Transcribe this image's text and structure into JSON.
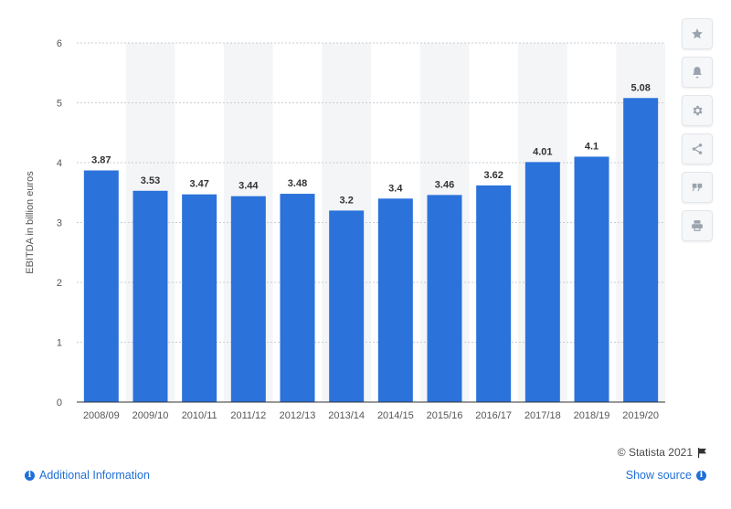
{
  "chart_data": {
    "type": "bar",
    "categories": [
      "2008/09",
      "2009/10",
      "2010/11",
      "2011/12",
      "2012/13",
      "2013/14",
      "2014/15",
      "2015/16",
      "2016/17",
      "2017/18",
      "2018/19",
      "2019/20"
    ],
    "values": [
      3.87,
      3.53,
      3.47,
      3.44,
      3.48,
      3.2,
      3.4,
      3.46,
      3.62,
      4.01,
      4.1,
      5.08
    ],
    "value_labels": [
      "3.87",
      "3.53",
      "3.47",
      "3.44",
      "3.48",
      "3.2",
      "3.4",
      "3.46",
      "3.62",
      "4.01",
      "4.1",
      "5.08"
    ],
    "ylabel": "EBITDA in billion euros",
    "ylim": [
      0,
      6
    ],
    "yticks": [
      "0",
      "1",
      "2",
      "3",
      "4",
      "5",
      "6"
    ],
    "grid": true,
    "bar_color": "#2b72db"
  },
  "toolbar": {
    "buttons": [
      {
        "name": "star-icon"
      },
      {
        "name": "bell-icon"
      },
      {
        "name": "gear-icon"
      },
      {
        "name": "share-icon"
      },
      {
        "name": "quote-icon"
      },
      {
        "name": "print-icon"
      }
    ]
  },
  "footer": {
    "credit": "© Statista 2021",
    "additional_info": "Additional Information",
    "show_source": "Show source"
  },
  "colors": {
    "link": "#1f6fd6",
    "band": "#f4f5f7"
  }
}
